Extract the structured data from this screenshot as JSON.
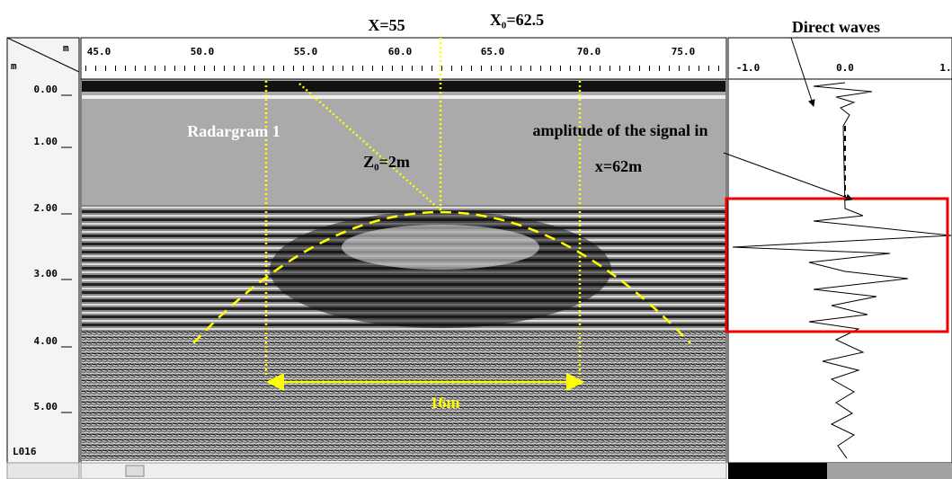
{
  "line_id": "L016",
  "depth_axis": {
    "corner_unit_x": "m",
    "corner_unit_y": "m",
    "labels": [
      "0.00",
      "1.00",
      "2.00",
      "3.00",
      "4.00",
      "5.00"
    ]
  },
  "distance_axis": {
    "labels": [
      "45.0",
      "50.0",
      "55.0",
      "60.0",
      "65.0",
      "70.0",
      "75.0"
    ]
  },
  "amplitude_axis": {
    "labels": [
      "-1.0",
      "0.0",
      "1."
    ]
  },
  "annotations": {
    "x": "X=55",
    "x0": "X₀=62.5",
    "direct_waves": "Direct waves",
    "radargram": "Radargram 1",
    "z0": "Z₀=2m",
    "amplitude_1": "amplitude of the signal in",
    "amplitude_2": "x=62m",
    "width": "16m"
  }
}
